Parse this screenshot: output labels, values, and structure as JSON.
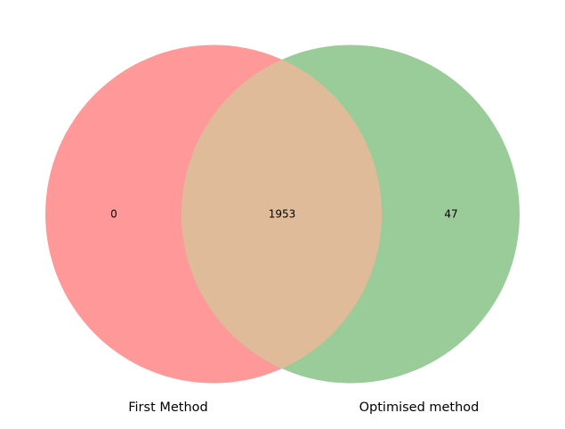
{
  "venn": {
    "sets": [
      {
        "label": "First Method",
        "color": "#ff9999"
      },
      {
        "label": "Optimised method",
        "color": "#99cc99"
      }
    ],
    "overlap_color": "#e0bb99",
    "regions": {
      "only_first": "0",
      "both": "1953",
      "only_second": "47"
    }
  }
}
